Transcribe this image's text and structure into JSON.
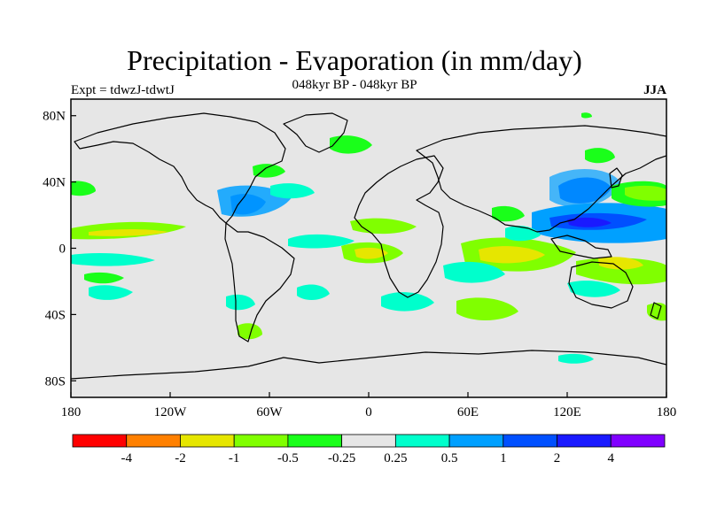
{
  "title": "Precipitation - Evaporation (in mm/day)",
  "subtitle": "048kyr BP - 048kyr BP",
  "left_note": "Expt = tdwzJ-tdwtJ",
  "right_note": "JJA",
  "map": {
    "projection": "cylindrical equidistant",
    "lon_range": [
      -180,
      180
    ],
    "lat_range": [
      -90,
      90
    ],
    "background_color": "#e6e6e6",
    "coastline_color": "#000000",
    "lat_ticks": [
      {
        "value": 80,
        "label": "80N"
      },
      {
        "value": 40,
        "label": "40N"
      },
      {
        "value": 0,
        "label": "0"
      },
      {
        "value": -40,
        "label": "40S"
      },
      {
        "value": -80,
        "label": "80S"
      }
    ],
    "lon_ticks": [
      {
        "value": -180,
        "label": "180"
      },
      {
        "value": -120,
        "label": "120W"
      },
      {
        "value": -60,
        "label": "60W"
      },
      {
        "value": 0,
        "label": "0"
      },
      {
        "value": 60,
        "label": "60E"
      },
      {
        "value": 120,
        "label": "120E"
      },
      {
        "value": 180,
        "label": "180"
      }
    ]
  },
  "colorbar": {
    "colors": [
      "#ff0000",
      "#ff8000",
      "#e6e600",
      "#80ff00",
      "#1aff1a",
      "#e6e6e6",
      "#00ffcc",
      "#00a0ff",
      "#0050ff",
      "#1a1aff",
      "#8000ff"
    ],
    "labels": [
      "-4",
      "-2",
      "-1",
      "-0.5",
      "-0.25",
      "0.25",
      "0.5",
      "1",
      "2",
      "4"
    ]
  }
}
